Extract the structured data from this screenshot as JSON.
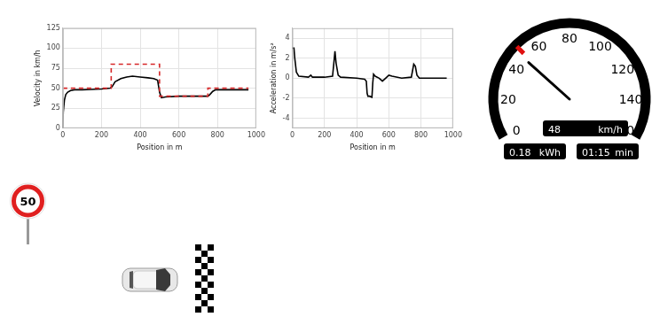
{
  "chart_data": [
    {
      "type": "line",
      "y_label": "Velocity in km/h",
      "x_label": "Position in m",
      "xlim": [
        0,
        1000
      ],
      "xticks": [
        0,
        200,
        400,
        600,
        800,
        1000
      ],
      "ylim": [
        0,
        125
      ],
      "yticks": [
        0,
        25,
        50,
        75,
        100,
        125
      ],
      "grid": true,
      "series": [
        {
          "color": "#d62728",
          "line_style": "dashed",
          "x": [
            0,
            250,
            250,
            500,
            500,
            750,
            750,
            960
          ],
          "values": [
            50,
            50,
            80,
            80,
            40,
            40,
            50,
            50
          ]
        },
        {
          "color": "#000000",
          "line_style": "solid",
          "x": [
            0,
            2,
            8,
            15,
            25,
            40,
            60,
            100,
            150,
            200,
            245,
            255,
            270,
            300,
            330,
            360,
            400,
            440,
            470,
            490,
            500,
            510,
            530,
            600,
            700,
            750,
            760,
            775,
            790,
            850,
            900,
            960
          ],
          "values": [
            0,
            20,
            35,
            42,
            45,
            47,
            48,
            48,
            48.5,
            49,
            50,
            52,
            58,
            62,
            64,
            65,
            64,
            63,
            62,
            60,
            45,
            38,
            39,
            40,
            40,
            40,
            42,
            46,
            48,
            48,
            48,
            48
          ]
        }
      ]
    },
    {
      "type": "line",
      "y_label": "Acceleration in m/s²",
      "x_label": "Position in m",
      "xlim": [
        0,
        1000
      ],
      "xticks": [
        0,
        200,
        400,
        600,
        800,
        1000
      ],
      "ylim": [
        -5,
        5
      ],
      "yticks": [
        -4,
        -2,
        0,
        2,
        4
      ],
      "grid": true,
      "series": [
        {
          "color": "#000000",
          "line_style": "solid",
          "x": [
            0,
            10,
            15,
            25,
            40,
            100,
            115,
            125,
            140,
            200,
            250,
            258,
            265,
            272,
            285,
            300,
            400,
            450,
            460,
            465,
            470,
            480,
            495,
            500,
            505,
            515,
            540,
            560,
            580,
            600,
            620,
            680,
            740,
            755,
            765,
            775,
            790,
            850,
            960
          ],
          "values": [
            3,
            3,
            2,
            0.6,
            0.2,
            0.1,
            0.3,
            0.1,
            0.1,
            0.1,
            0.2,
            1.5,
            2.7,
            1.5,
            0.3,
            0.1,
            0,
            -0.1,
            -0.3,
            -1.5,
            -1.8,
            -1.8,
            -1.9,
            -0.5,
            0.4,
            0.2,
            0,
            -0.3,
            0,
            0.3,
            0.2,
            0,
            0.1,
            1.4,
            1.2,
            0.3,
            0,
            0,
            0
          ]
        }
      ]
    }
  ],
  "gauge": {
    "ticks": [
      0,
      20,
      40,
      60,
      80,
      100,
      120,
      140,
      160
    ],
    "speed": {
      "value": 48,
      "unit": "km/h"
    },
    "limit_marker": 50,
    "energy": {
      "value": 0.18,
      "unit": "kWh"
    },
    "time": {
      "value": "01:15",
      "unit": "min"
    }
  },
  "sign": {
    "label": "50"
  }
}
